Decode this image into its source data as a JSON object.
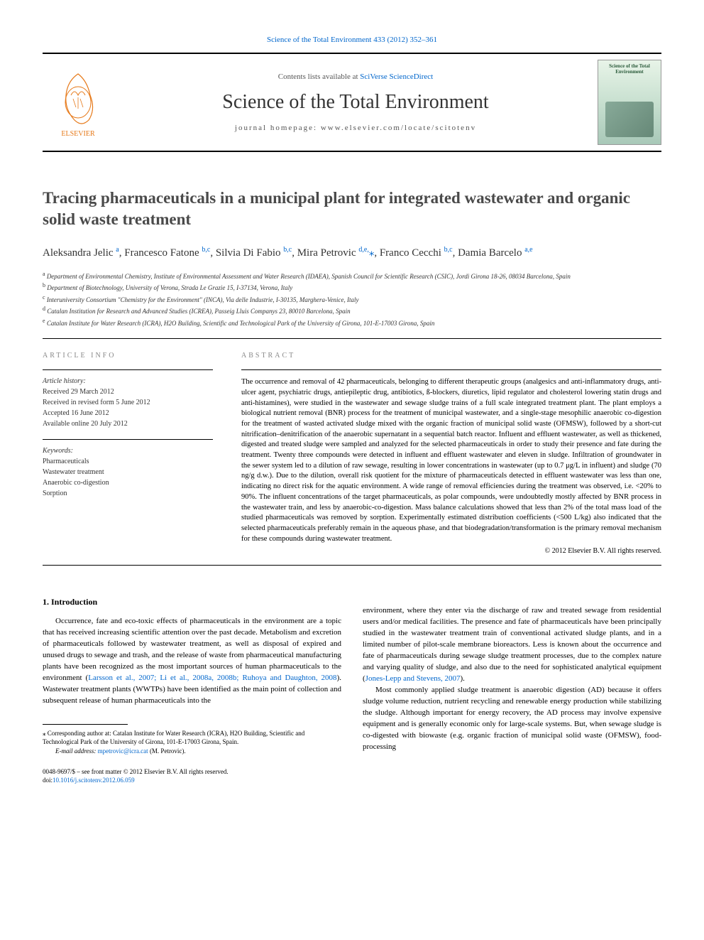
{
  "top_link": "Science of the Total Environment 433 (2012) 352–361",
  "header": {
    "contents_prefix": "Contents lists available at ",
    "contents_link": "SciVerse ScienceDirect",
    "journal_title": "Science of the Total Environment",
    "homepage_prefix": "journal homepage: ",
    "homepage_url": "www.elsevier.com/locate/scitotenv",
    "cover_title": "Science of the Total Environment"
  },
  "article": {
    "title": "Tracing pharmaceuticals in a municipal plant for integrated wastewater and organic solid waste treatment",
    "authors_html": "Aleksandra Jelic <span class='sup'>a</span>, Francesco Fatone <span class='sup'>b,c</span>, Silvia Di Fabio <span class='sup'>b,c</span>, Mira Petrovic <span class='sup'>d,e,</span><span class='corr'>⁎</span>, Franco Cecchi <span class='sup'>b,c</span>, Damia Barcelo <span class='sup'>a,e</span>",
    "affiliations": [
      {
        "sup": "a",
        "text": "Department of Environmental Chemistry, Institute of Environmental Assessment and Water Research (IDAEA), Spanish Council for Scientific Research (CSIC), Jordi Girona 18-26, 08034 Barcelona, Spain"
      },
      {
        "sup": "b",
        "text": "Department of Biotechnology, University of Verona, Strada Le Grazie 15, I-37134, Verona, Italy"
      },
      {
        "sup": "c",
        "text": "Interuniversity Consortium \"Chemistry for the Environment\" (INCA), Via delle Industrie, I-30135, Marghera-Venice, Italy"
      },
      {
        "sup": "d",
        "text": "Catalan Institution for Research and Advanced Studies (ICREA), Passeig Lluis Companys 23, 80010 Barcelona, Spain"
      },
      {
        "sup": "e",
        "text": "Catalan Institute for Water Research (ICRA), H2O Building, Scientific and Technological Park of the University of Girona, 101-E-17003 Girona, Spain"
      }
    ]
  },
  "info": {
    "heading": "ARTICLE INFO",
    "history_label": "Article history:",
    "history": "Received 29 March 2012\nReceived in revised form 5 June 2012\nAccepted 16 June 2012\nAvailable online 20 July 2012",
    "keywords_label": "Keywords:",
    "keywords": "Pharmaceuticals\nWastewater treatment\nAnaerobic co-digestion\nSorption"
  },
  "abstract": {
    "heading": "ABSTRACT",
    "text": "The occurrence and removal of 42 pharmaceuticals, belonging to different therapeutic groups (analgesics and anti-inflammatory drugs, anti-ulcer agent, psychiatric drugs, antiepileptic drug, antibiotics, ß-blockers, diuretics, lipid regulator and cholesterol lowering statin drugs and anti-histamines), were studied in the wastewater and sewage sludge trains of a full scale integrated treatment plant. The plant employs a biological nutrient removal (BNR) process for the treatment of municipal wastewater, and a single-stage mesophilic anaerobic co-digestion for the treatment of wasted activated sludge mixed with the organic fraction of municipal solid waste (OFMSW), followed by a short-cut nitrification–denitrification of the anaerobic supernatant in a sequential batch reactor. Influent and effluent wastewater, as well as thickened, digested and treated sludge were sampled and analyzed for the selected pharmaceuticals in order to study their presence and fate during the treatment. Twenty three compounds were detected in influent and effluent wastewater and eleven in sludge. Infiltration of groundwater in the sewer system led to a dilution of raw sewage, resulting in lower concentrations in wastewater (up to 0.7 μg/L in influent) and sludge (70 ng/g d.w.). Due to the dilution, overall risk quotient for the mixture of pharmaceuticals detected in effluent wastewater was less than one, indicating no direct risk for the aquatic environment. A wide range of removal efficiencies during the treatment was observed, i.e. <20% to 90%. The influent concentrations of the target pharmaceuticals, as polar compounds, were undoubtedly mostly affected by BNR process in the wastewater train, and less by anaerobic-co-digestion. Mass balance calculations showed that less than 2% of the total mass load of the studied pharmaceuticals was removed by sorption. Experimentally estimated distribution coefficients (<500 L/kg) also indicated that the selected pharmaceuticals preferably remain in the aqueous phase, and that biodegradation/transformation is the primary removal mechanism for these compounds during wastewater treatment.",
    "copyright": "© 2012 Elsevier B.V. All rights reserved."
  },
  "introduction": {
    "heading": "1. Introduction",
    "col1_p1_html": "Occurrence, fate and eco-toxic effects of pharmaceuticals in the environment are a topic that has received increasing scientific attention over the past decade. Metabolism and excretion of pharmaceuticals followed by wastewater treatment, as well as disposal of expired and unused drugs to sewage and trash, and the release of waste from pharmaceutical manufacturing plants have been recognized as the most important sources of human pharmaceuticals to the environment (<a>Larsson et al., 2007; Li et al., 2008a, 2008b; Ruhoya and Daughton, 2008</a>). Wastewater treatment plants (WWTPs) have been identified as the main point of collection and subsequent release of human pharmaceuticals into the",
    "col2_p1_html": "environment, where they enter via the discharge of raw and treated sewage from residential users and/or medical facilities. The presence and fate of pharmaceuticals have been principally studied in the wastewater treatment train of conventional activated sludge plants, and in a limited number of pilot-scale membrane bioreactors. Less is known about the occurrence and fate of pharmaceuticals during sewage sludge treatment processes, due to the complex nature and varying quality of sludge, and also due to the need for sophisticated analytical equipment (<a>Jones-Lepp and Stevens, 2007</a>).",
    "col2_p2_html": "Most commonly applied sludge treatment is anaerobic digestion (AD) because it offers sludge volume reduction, nutrient recycling and renewable energy production while stabilizing the sludge. Although important for energy recovery, the AD process may involve expensive equipment and is generally economic only for large-scale systems. But, when sewage sludge is co-digested with biowaste (e.g. organic fraction of municipal solid waste (OFMSW), food-processing"
  },
  "footnote": {
    "corr_text": "⁎ Corresponding author at: Catalan Institute for Water Research (ICRA), H2O Building, Scientific and Technological Park of the University of Girona, 101-E-17003 Girona, Spain.",
    "email_label": "E-mail address: ",
    "email": "mpetrovic@icra.cat",
    "email_suffix": " (M. Petrovic)."
  },
  "footer": {
    "front_matter": "0048-9697/$ – see front matter © 2012 Elsevier B.V. All rights reserved.",
    "doi_label": "doi:",
    "doi": "10.1016/j.scitotenv.2012.06.059"
  },
  "colors": {
    "link": "#0066cc",
    "text": "#000000",
    "muted": "#888888",
    "elsevier_orange": "#ff6600",
    "border": "#000000"
  }
}
